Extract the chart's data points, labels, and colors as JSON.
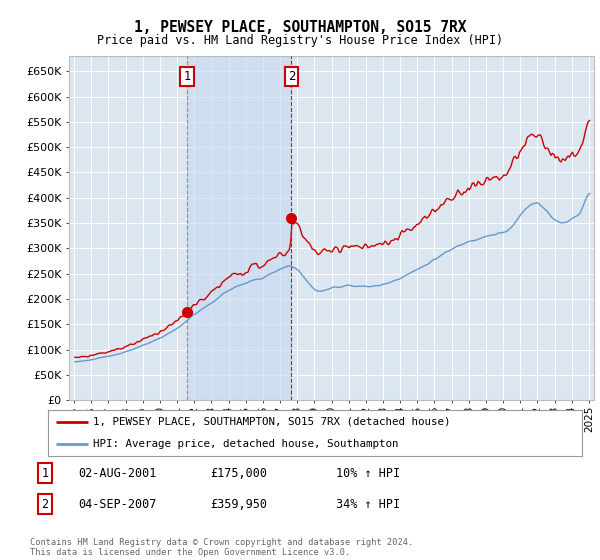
{
  "title": "1, PEWSEY PLACE, SOUTHAMPTON, SO15 7RX",
  "subtitle": "Price paid vs. HM Land Registry's House Price Index (HPI)",
  "background_color": "#ffffff",
  "plot_bg_color": "#dce6f1",
  "grid_color": "#ffffff",
  "ylim": [
    0,
    680000
  ],
  "yticks": [
    0,
    50000,
    100000,
    150000,
    200000,
    250000,
    300000,
    350000,
    400000,
    450000,
    500000,
    550000,
    600000,
    650000
  ],
  "sale_year_floats": [
    2001.583,
    2007.667
  ],
  "sale_prices": [
    175000,
    359950
  ],
  "sale_labels": [
    "1",
    "2"
  ],
  "sale_label_info": [
    {
      "num": "1",
      "date": "02-AUG-2001",
      "price": "£175,000",
      "hpi": "10% ↑ HPI"
    },
    {
      "num": "2",
      "date": "04-SEP-2007",
      "price": "£359,950",
      "hpi": "34% ↑ HPI"
    }
  ],
  "legend_entries": [
    {
      "label": "1, PEWSEY PLACE, SOUTHAMPTON, SO15 7RX (detached house)",
      "color": "#cc0000"
    },
    {
      "label": "HPI: Average price, detached house, Southampton",
      "color": "#6699cc"
    }
  ],
  "footer": "Contains HM Land Registry data © Crown copyright and database right 2024.\nThis data is licensed under the Open Government Licence v3.0.",
  "hpi_line_color": "#6699cc",
  "price_line_color": "#cc0000",
  "vline1_color": "#888888",
  "vline2_color": "#cc0000",
  "shade_color": "#c5d8ee",
  "highlight_alpha": 0.5
}
